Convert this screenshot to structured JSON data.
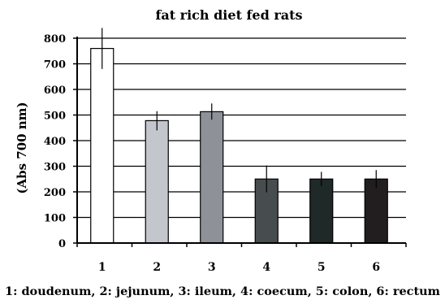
{
  "chart_data": {
    "type": "bar",
    "title": "fat rich diet fed rats",
    "ylabel": "(Abs 700 nm)",
    "xlabel": "",
    "caption": "1: doudenum, 2: jejunum, 3: ileum, 4: coecum, 5: colon, 6: rectum",
    "categories": [
      "1",
      "2",
      "3",
      "4",
      "5",
      "6"
    ],
    "values": [
      760,
      478,
      513,
      250,
      250,
      250
    ],
    "error_upper": [
      840,
      515,
      545,
      303,
      278,
      285
    ],
    "error_lower": [
      680,
      440,
      482,
      198,
      222,
      215
    ],
    "bar_colors": [
      "#ffffff",
      "#c3c6cd",
      "#8e9298",
      "#474c4f",
      "#1f2927",
      "#221e20"
    ],
    "ylim": [
      0,
      800
    ],
    "yticks": [
      "0",
      "100",
      "200",
      "300",
      "400",
      "500",
      "600",
      "700",
      "800"
    ],
    "grid": true
  }
}
